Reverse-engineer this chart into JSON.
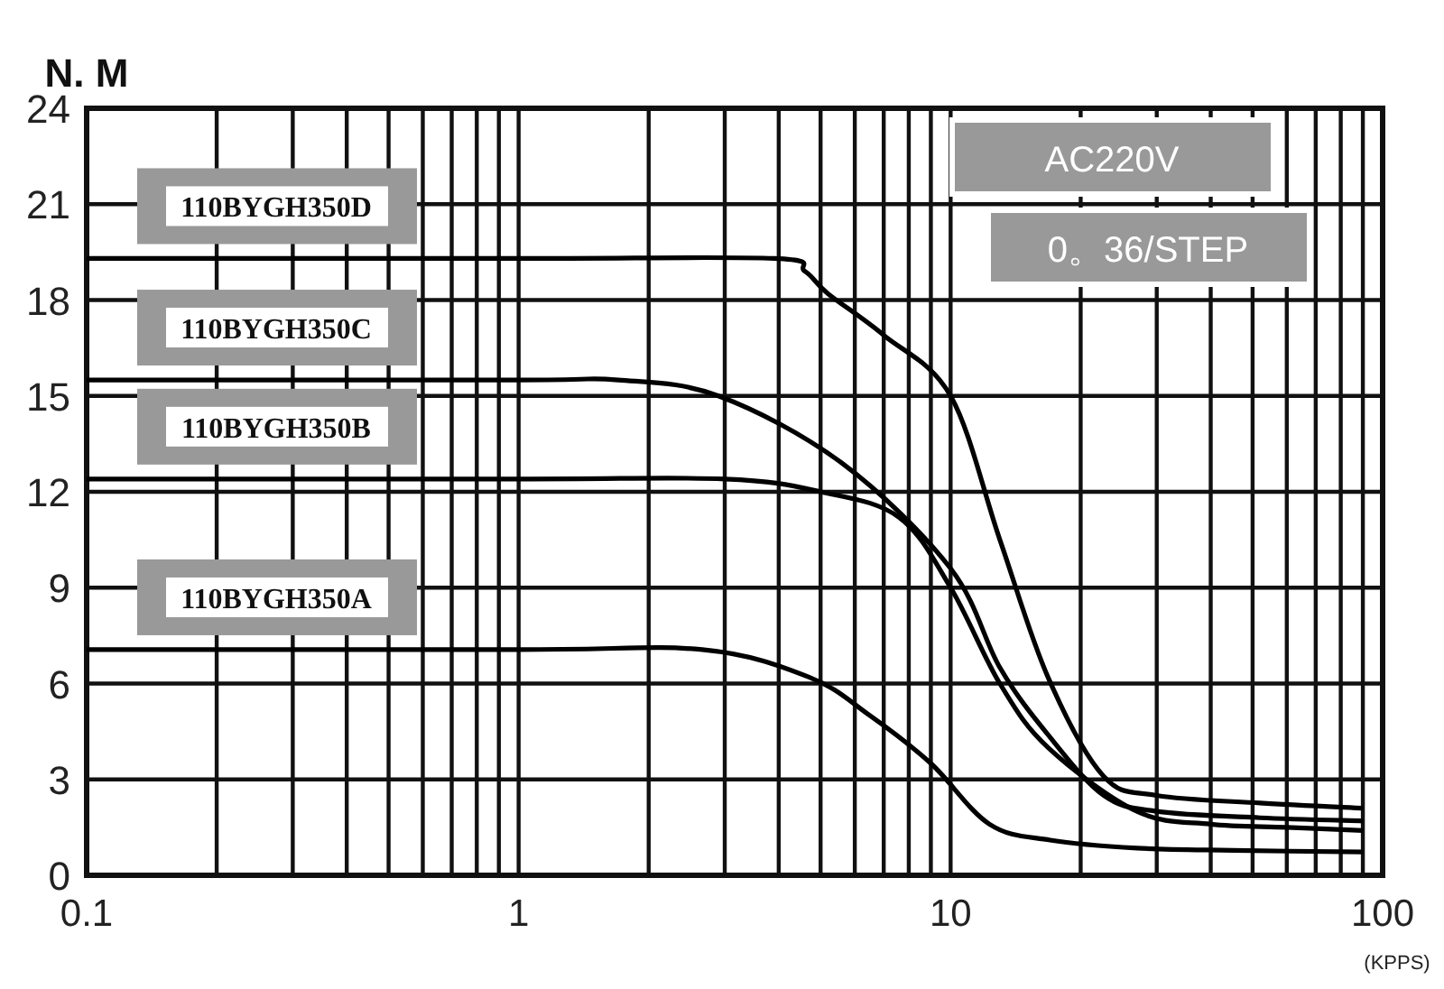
{
  "chart_data": {
    "type": "line",
    "xlabel": "(KPPS)",
    "ylabel": "N. M",
    "log": "x",
    "xlim": [
      0.1,
      100
    ],
    "ylim": [
      0,
      24
    ],
    "xticks": [
      0.1,
      1,
      10,
      100
    ],
    "yticks": [
      0,
      3,
      6,
      9,
      12,
      15,
      18,
      21,
      24
    ],
    "grid": true,
    "legend": false,
    "marker": "none",
    "line_style": "solid",
    "annotations": [
      "AC220V",
      "0。36/STEP"
    ],
    "series": [
      {
        "name": "110BYGH350D",
        "color": "#000000",
        "x": [
          0.1,
          1,
          3.9,
          4.6,
          5.2,
          7,
          10,
          13,
          16.8,
          22.6,
          30,
          52,
          90
        ],
        "values": [
          19.3,
          19.3,
          19.3,
          18.9,
          18.2,
          16.9,
          15.0,
          10.5,
          6.2,
          3.1,
          2.5,
          2.26,
          2.1
        ]
      },
      {
        "name": "110BYGH350C",
        "color": "#000000",
        "x": [
          0.1,
          1,
          1.7,
          2.9,
          5.6,
          10,
          13,
          16.8,
          22.6,
          30,
          52,
          90
        ],
        "values": [
          15.5,
          15.5,
          15.5,
          15.0,
          12.9,
          9.6,
          6.5,
          4.4,
          2.5,
          2.0,
          1.8,
          1.7
        ]
      },
      {
        "name": "110BYGH350B",
        "color": "#000000",
        "x": [
          0.1,
          1,
          3,
          5,
          7.6,
          10,
          13,
          16.8,
          27,
          40,
          60,
          90
        ],
        "values": [
          12.4,
          12.4,
          12.4,
          12.0,
          11.2,
          9.0,
          6.0,
          4.0,
          2.0,
          1.6,
          1.5,
          1.4
        ]
      },
      {
        "name": "110BYGH350A",
        "color": "#000000",
        "x": [
          0.1,
          1,
          2.66,
          4.7,
          6.5,
          9,
          12.3,
          17,
          27,
          45,
          90
        ],
        "values": [
          7.06,
          7.06,
          7.06,
          6.2,
          5.0,
          3.5,
          1.6,
          1.1,
          0.85,
          0.78,
          0.73
        ]
      }
    ]
  }
}
